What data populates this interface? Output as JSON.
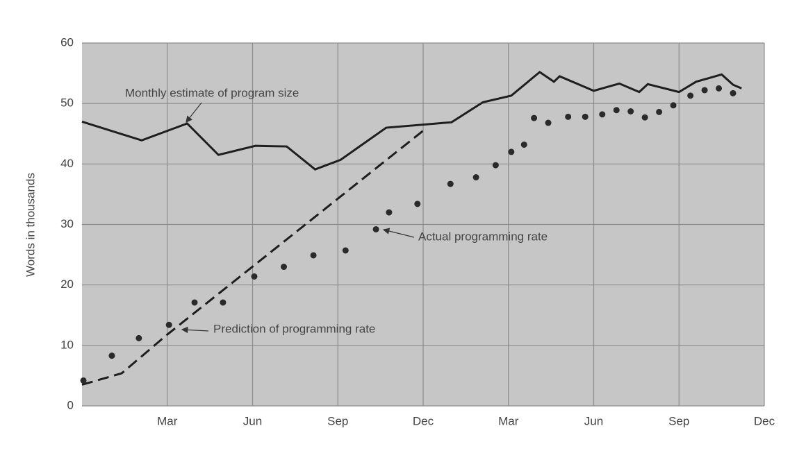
{
  "chart_data": {
    "type": "line",
    "ylabel": "Words in thousands",
    "xlim": [
      0,
      24
    ],
    "xticks": [
      {
        "value": 3,
        "label": "Mar"
      },
      {
        "value": 6,
        "label": "Jun"
      },
      {
        "value": 9,
        "label": "Sep"
      },
      {
        "value": 12,
        "label": "Dec"
      },
      {
        "value": 15,
        "label": "Mar"
      },
      {
        "value": 18,
        "label": "Jun"
      },
      {
        "value": 21,
        "label": "Sep"
      },
      {
        "value": 24,
        "label": "Dec"
      }
    ],
    "ylim": [
      0,
      60
    ],
    "yticks": [
      0,
      10,
      20,
      30,
      40,
      50,
      60
    ],
    "grid": true,
    "background": "#c6c6c6",
    "series": [
      {
        "name": "Monthly estimate of program size",
        "color": "#1e1e1e",
        "style": "solid",
        "x": [
          0,
          2.1,
          3.7,
          4.8,
          6.1,
          7.2,
          8.2,
          9.1,
          10.7,
          13,
          14.1,
          15.1,
          16.1,
          16.6,
          16.8,
          18,
          18.9,
          19.6,
          19.9,
          21,
          21.6,
          22.5,
          22.9,
          23.2
        ],
        "values": [
          47,
          43.9,
          46.7,
          41.5,
          43,
          42.9,
          39.1,
          40.7,
          46,
          46.9,
          50.2,
          51.3,
          55.2,
          53.6,
          54.5,
          52.1,
          53.3,
          51.9,
          53.2,
          51.9,
          53.6,
          54.8,
          53.1,
          52.5
        ]
      },
      {
        "name": "Prediction of programming rate",
        "color": "#1e1e1e",
        "style": "dashed",
        "x": [
          0,
          1.4,
          3,
          12
        ],
        "values": [
          3.5,
          5.4,
          11.8,
          45.5
        ]
      },
      {
        "name": "Actual programming rate",
        "color": "#2a2a2a",
        "style": "dots",
        "x": [
          0.05,
          1.05,
          2,
          3.06,
          3.96,
          4.96,
          6.06,
          7.1,
          8.14,
          9.27,
          10.34,
          10.8,
          11.8,
          12.96,
          13.86,
          14.55,
          15.1,
          15.55,
          15.9,
          16.4,
          17.1,
          17.7,
          18.3,
          18.8,
          19.3,
          19.8,
          20.3,
          20.8,
          21.4,
          21.9,
          22.4,
          22.9
        ],
        "values": [
          4.2,
          8.3,
          11.2,
          13.4,
          17.1,
          17.1,
          21.4,
          23,
          24.9,
          25.7,
          29.2,
          32,
          33.4,
          36.7,
          37.8,
          39.8,
          42,
          43.2,
          47.6,
          46.8,
          47.8,
          47.8,
          48.2,
          48.9,
          48.7,
          47.7,
          48.6,
          49.7,
          51.3,
          52.2,
          52.5,
          51.7
        ]
      }
    ]
  }
}
